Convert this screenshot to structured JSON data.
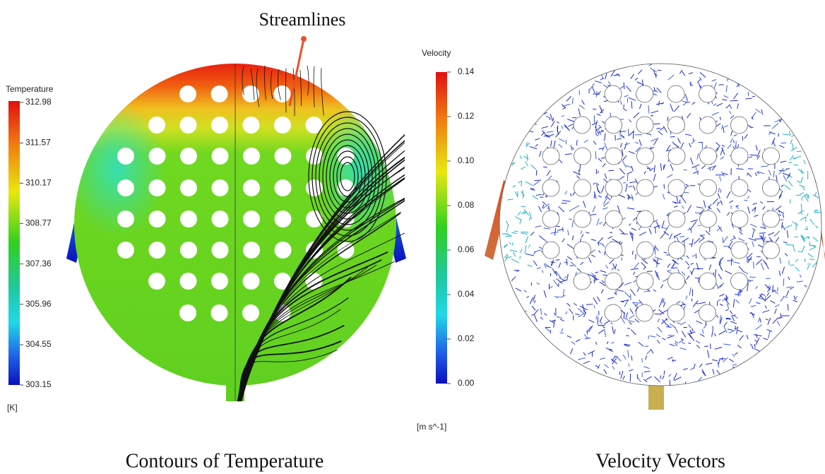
{
  "annotation": "Streamlines",
  "temperature_legend": {
    "title": "Temperature",
    "unit": "[K]",
    "ticks": [
      312.98,
      311.57,
      310.17,
      308.77,
      307.36,
      305.96,
      304.55,
      303.15
    ]
  },
  "velocity_legend": {
    "title": "Velocity",
    "unit": "[m s^-1]",
    "ticks": [
      0.14,
      0.12,
      {
        "value": 0.1,
        "label": "0.10"
      },
      0.08,
      0.06,
      0.04,
      0.02,
      {
        "value": 0,
        "label": "0.00"
      }
    ]
  },
  "captions": [
    "Contours of Temperature",
    "Velocity Vectors"
  ]
}
